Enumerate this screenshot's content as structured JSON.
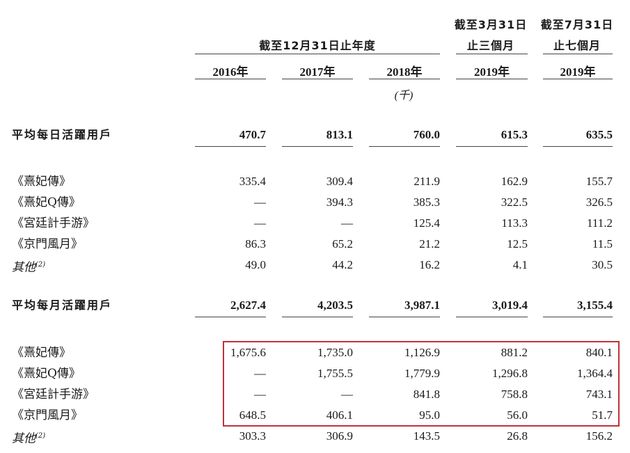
{
  "header": {
    "group_label": "截至12月31日止年度",
    "col4_line1": "截至3月31日",
    "col4_line2": "止三個月",
    "col5_line1": "截至7月31日",
    "col5_line2": "止七個月",
    "years": [
      "2016年",
      "2017年",
      "2018年",
      "2019年",
      "2019年"
    ],
    "unit": "(千)"
  },
  "dau": {
    "title": "平均每日活躍用戶",
    "totals": [
      "470.7",
      "813.1",
      "760.0",
      "615.3",
      "635.5"
    ],
    "rows": [
      {
        "label": "《熹妃傳》",
        "values": [
          "335.4",
          "309.4",
          "211.9",
          "162.9",
          "155.7"
        ]
      },
      {
        "label": "《熹妃Q傳》",
        "values": [
          "—",
          "394.3",
          "385.3",
          "322.5",
          "326.5"
        ]
      },
      {
        "label": "《宮廷計手游》",
        "values": [
          "—",
          "—",
          "125.4",
          "113.3",
          "111.2"
        ]
      },
      {
        "label": "《京門風月》",
        "values": [
          "86.3",
          "65.2",
          "21.2",
          "12.5",
          "11.5"
        ]
      },
      {
        "label": "其他",
        "sup": "(2)",
        "values": [
          "49.0",
          "44.2",
          "16.2",
          "4.1",
          "30.5"
        ]
      }
    ]
  },
  "mau": {
    "title": "平均每月活躍用戶",
    "totals": [
      "2,627.4",
      "4,203.5",
      "3,987.1",
      "3,019.4",
      "3,155.4"
    ],
    "rows": [
      {
        "label": "《熹妃傳》",
        "values": [
          "1,675.6",
          "1,735.0",
          "1,126.9",
          "881.2",
          "840.1"
        ]
      },
      {
        "label": "《熹妃Q傳》",
        "values": [
          "—",
          "1,755.5",
          "1,779.9",
          "1,296.8",
          "1,364.4"
        ]
      },
      {
        "label": "《宮廷計手游》",
        "values": [
          "—",
          "—",
          "841.8",
          "758.8",
          "743.1"
        ]
      },
      {
        "label": "《京門風月》",
        "values": [
          "648.5",
          "406.1",
          "95.0",
          "56.0",
          "51.7"
        ]
      },
      {
        "label": "其他",
        "sup": "(2)",
        "values": [
          "303.3",
          "306.9",
          "143.5",
          "26.8",
          "156.2"
        ]
      }
    ]
  },
  "highlight_color": "#c0303a"
}
